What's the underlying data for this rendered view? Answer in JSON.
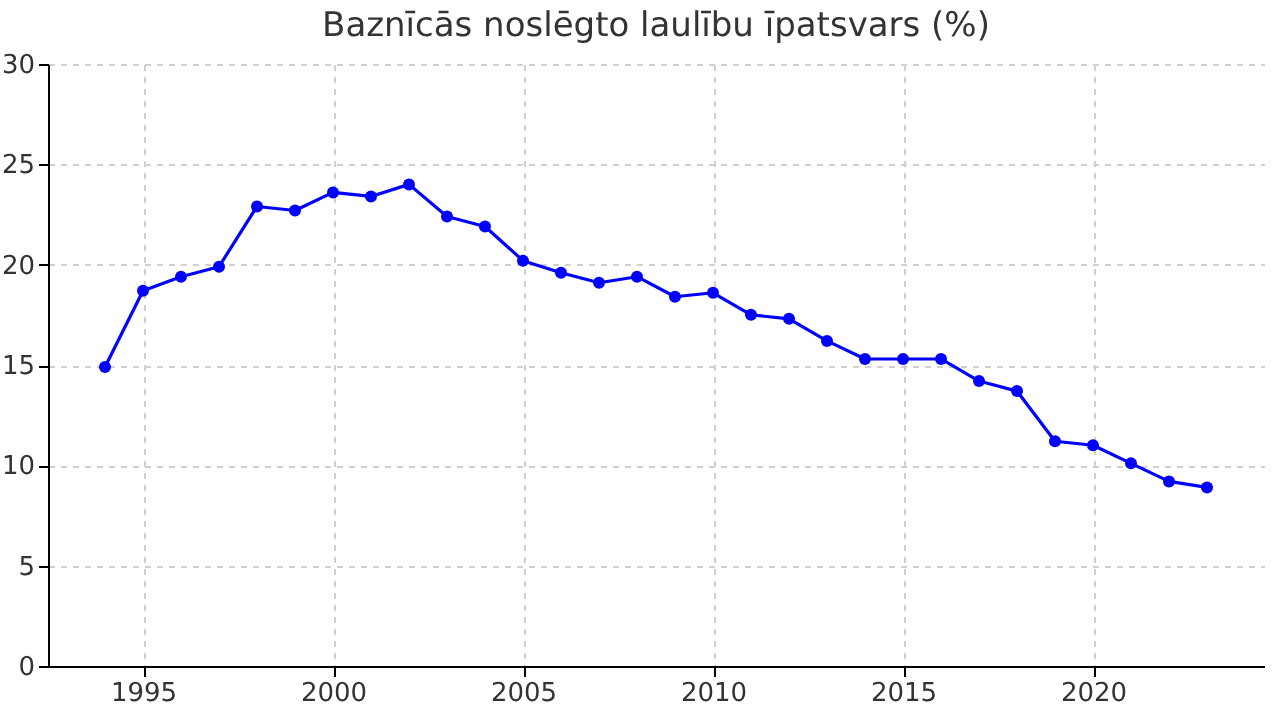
{
  "chart_data": {
    "type": "line",
    "title": "Baznīcās noslēgto laulību īpatsvars (%)",
    "x": [
      1994,
      1995,
      1996,
      1997,
      1998,
      1999,
      2000,
      2001,
      2002,
      2003,
      2004,
      2005,
      2006,
      2007,
      2008,
      2009,
      2010,
      2011,
      2012,
      2013,
      2014,
      2015,
      2016,
      2017,
      2018,
      2019,
      2020,
      2021,
      2022,
      2023
    ],
    "series": [
      {
        "color": "#0000ff",
        "values": [
          14.9,
          18.7,
          19.4,
          19.9,
          22.9,
          22.7,
          23.6,
          23.4,
          24.0,
          22.4,
          21.9,
          20.2,
          19.6,
          19.1,
          19.4,
          18.4,
          18.6,
          17.5,
          17.3,
          16.2,
          15.3,
          15.3,
          15.3,
          14.2,
          13.7,
          11.2,
          11.0,
          10.1,
          9.2,
          8.9
        ]
      }
    ],
    "xlim": [
      1992.5,
      2024.5
    ],
    "xticks": [
      1995,
      2000,
      2005,
      2010,
      2015,
      2020
    ],
    "ylim": [
      0,
      30
    ],
    "yticks": [
      0,
      5,
      10,
      15,
      20,
      25,
      30
    ],
    "grid": true,
    "marker": "circle",
    "line_style": "solid"
  }
}
